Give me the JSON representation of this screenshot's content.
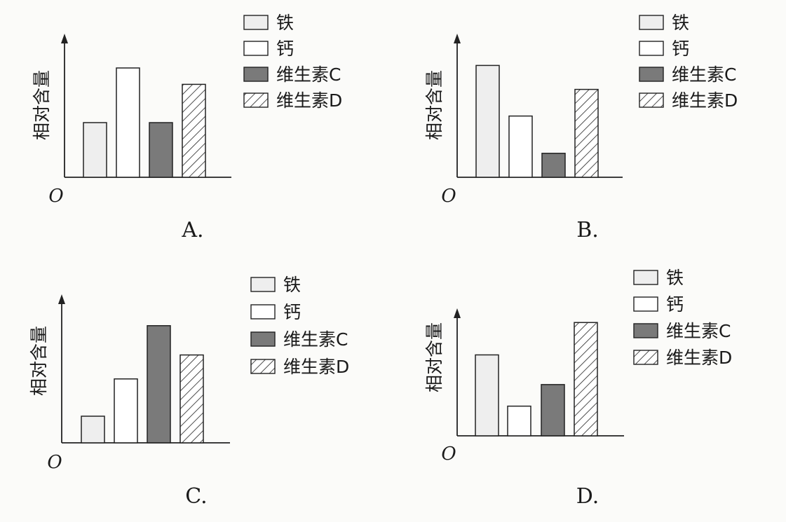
{
  "chart_data": [
    {
      "type": "bar",
      "panel_label": "A.",
      "ylabel": "相对含量",
      "origin_label": "O",
      "categories": [
        "铁",
        "钙",
        "维生素C",
        "维生素D"
      ],
      "values": [
        1.0,
        2.0,
        1.0,
        1.7
      ],
      "legend": [
        "铁",
        "钙",
        "维生素C",
        "维生素D"
      ],
      "legend_position": "top-right"
    },
    {
      "type": "bar",
      "panel_label": "B.",
      "ylabel": "相对含量",
      "origin_label": "O",
      "categories": [
        "铁",
        "钙",
        "维生素C",
        "维生素D"
      ],
      "values": [
        2.1,
        1.15,
        0.45,
        1.65
      ],
      "legend": [
        "铁",
        "钙",
        "维生素C",
        "维生素D"
      ],
      "legend_position": "top-right"
    },
    {
      "type": "bar",
      "panel_label": "C.",
      "ylabel": "相对含量",
      "origin_label": "O",
      "categories": [
        "铁",
        "钙",
        "维生素C",
        "维生素D"
      ],
      "values": [
        0.5,
        1.2,
        2.2,
        1.65
      ],
      "legend": [
        "铁",
        "钙",
        "维生素C",
        "维生素D"
      ],
      "legend_position": "top-right"
    },
    {
      "type": "bar",
      "panel_label": "D.",
      "ylabel": "相对含量",
      "origin_label": "O",
      "categories": [
        "铁",
        "钙",
        "维生素C",
        "维生素D"
      ],
      "values": [
        1.5,
        0.55,
        0.95,
        2.1
      ],
      "legend": [
        "铁",
        "钙",
        "维生素C",
        "维生素D"
      ],
      "legend_position": "top-right"
    }
  ],
  "styles": {
    "fills": [
      "#eeeeee",
      "#ffffff",
      "#7a7a7a",
      "hatch"
    ],
    "stroke": "#222222"
  }
}
